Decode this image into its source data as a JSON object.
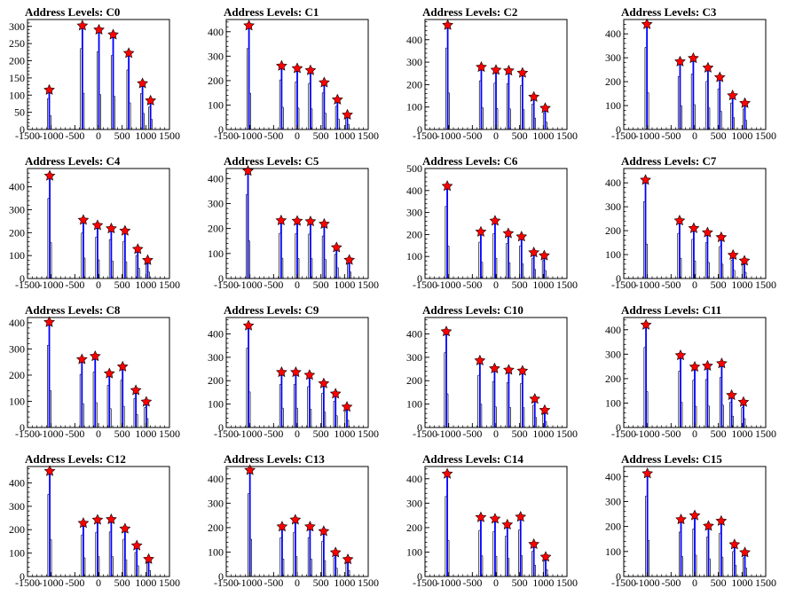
{
  "chart_data": {
    "type": "bar",
    "layout": {
      "rows": 4,
      "cols": 4
    },
    "x_range": [
      -1500,
      1500
    ],
    "x_ticks": [
      -1500,
      -1000,
      -500,
      0,
      500,
      1000,
      1500
    ],
    "colors": {
      "bars": "#0000ff",
      "outline": "#000000",
      "star": "#ff0000",
      "star_edge": "#000000"
    },
    "panels": [
      {
        "title": "Address Levels: C0",
        "ylim": [
          0,
          320
        ],
        "y_ticks": [
          0,
          50,
          100,
          150,
          200,
          250,
          300
        ],
        "peaks": [
          [
            -1040,
            115
          ],
          [
            -340,
            302
          ],
          [
            10,
            290
          ],
          [
            310,
            276
          ],
          [
            640,
            222
          ],
          [
            930,
            134
          ],
          [
            1100,
            84
          ]
        ]
      },
      {
        "title": "Address Levels: C1",
        "ylim": [
          0,
          450
        ],
        "y_ticks": [
          0,
          100,
          200,
          300,
          400
        ],
        "peaks": [
          [
            -1020,
            425
          ],
          [
            -330,
            260
          ],
          [
            0,
            250
          ],
          [
            280,
            242
          ],
          [
            570,
            192
          ],
          [
            850,
            122
          ],
          [
            1060,
            60
          ]
        ]
      },
      {
        "title": "Address Levels: C2",
        "ylim": [
          0,
          490
        ],
        "y_ticks": [
          0,
          100,
          200,
          300,
          400
        ],
        "peaks": [
          [
            -1020,
            465
          ],
          [
            -310,
            278
          ],
          [
            0,
            265
          ],
          [
            270,
            262
          ],
          [
            560,
            252
          ],
          [
            800,
            145
          ],
          [
            1040,
            95
          ]
        ]
      },
      {
        "title": "Address Levels: C3",
        "ylim": [
          0,
          460
        ],
        "y_ticks": [
          0,
          100,
          200,
          300,
          400
        ],
        "peaks": [
          [
            -1010,
            440
          ],
          [
            -310,
            284
          ],
          [
            -30,
            298
          ],
          [
            280,
            258
          ],
          [
            530,
            218
          ],
          [
            800,
            142
          ],
          [
            1060,
            110
          ]
        ]
      },
      {
        "title": "Address Levels: C4",
        "ylim": [
          0,
          480
        ],
        "y_ticks": [
          0,
          100,
          200,
          300,
          400
        ],
        "peaks": [
          [
            -1030,
            448
          ],
          [
            -320,
            255
          ],
          [
            -20,
            232
          ],
          [
            270,
            218
          ],
          [
            560,
            208
          ],
          [
            830,
            128
          ],
          [
            1040,
            80
          ]
        ]
      },
      {
        "title": "Address Levels: C5",
        "ylim": [
          0,
          440
        ],
        "y_ticks": [
          0,
          100,
          200,
          300,
          400
        ],
        "peaks": [
          [
            -1040,
            430
          ],
          [
            -340,
            232
          ],
          [
            0,
            230
          ],
          [
            280,
            228
          ],
          [
            570,
            218
          ],
          [
            830,
            124
          ],
          [
            1100,
            74
          ]
        ]
      },
      {
        "title": "Address Levels: C6",
        "ylim": [
          0,
          500
        ],
        "y_ticks": [
          0,
          100,
          200,
          300,
          400,
          500
        ],
        "peaks": [
          [
            -1030,
            420
          ],
          [
            -320,
            212
          ],
          [
            -20,
            262
          ],
          [
            260,
            205
          ],
          [
            540,
            190
          ],
          [
            800,
            118
          ],
          [
            1020,
            104
          ]
        ]
      },
      {
        "title": "Address Levels: C7",
        "ylim": [
          0,
          460
        ],
        "y_ticks": [
          0,
          100,
          200,
          300,
          400
        ],
        "peaks": [
          [
            -1040,
            412
          ],
          [
            -320,
            242
          ],
          [
            -20,
            210
          ],
          [
            270,
            192
          ],
          [
            560,
            172
          ],
          [
            810,
            98
          ],
          [
            1050,
            74
          ]
        ]
      },
      {
        "title": "Address Levels: C8",
        "ylim": [
          0,
          420
        ],
        "y_ticks": [
          0,
          100,
          200,
          300,
          400
        ],
        "peaks": [
          [
            -1040,
            402
          ],
          [
            -350,
            260
          ],
          [
            -70,
            272
          ],
          [
            230,
            206
          ],
          [
            510,
            232
          ],
          [
            790,
            142
          ],
          [
            1010,
            98
          ]
        ]
      },
      {
        "title": "Address Levels: C9",
        "ylim": [
          0,
          470
        ],
        "y_ticks": [
          0,
          100,
          200,
          300,
          400
        ],
        "peaks": [
          [
            -1030,
            435
          ],
          [
            -330,
            236
          ],
          [
            -30,
            236
          ],
          [
            260,
            224
          ],
          [
            560,
            188
          ],
          [
            810,
            144
          ],
          [
            1050,
            88
          ]
        ]
      },
      {
        "title": "Address Levels: C10",
        "ylim": [
          0,
          470
        ],
        "y_ticks": [
          0,
          100,
          200,
          300,
          400
        ],
        "peaks": [
          [
            -1050,
            410
          ],
          [
            -340,
            286
          ],
          [
            -30,
            252
          ],
          [
            270,
            246
          ],
          [
            560,
            242
          ],
          [
            820,
            122
          ],
          [
            1030,
            74
          ]
        ]
      },
      {
        "title": "Address Levels: C11",
        "ylim": [
          0,
          450
        ],
        "y_ticks": [
          0,
          100,
          200,
          300,
          400
        ],
        "peaks": [
          [
            -1030,
            420
          ],
          [
            -300,
            295
          ],
          [
            0,
            248
          ],
          [
            270,
            252
          ],
          [
            570,
            262
          ],
          [
            780,
            132
          ],
          [
            1030,
            104
          ]
        ]
      },
      {
        "title": "Address Levels: C12",
        "ylim": [
          0,
          470
        ],
        "y_ticks": [
          0,
          100,
          200,
          300,
          400
        ],
        "peaks": [
          [
            -1030,
            450
          ],
          [
            -320,
            228
          ],
          [
            -20,
            242
          ],
          [
            270,
            244
          ],
          [
            560,
            204
          ],
          [
            810,
            132
          ],
          [
            1060,
            74
          ]
        ]
      },
      {
        "title": "Address Levels: C13",
        "ylim": [
          0,
          450
        ],
        "y_ticks": [
          0,
          100,
          200,
          300,
          400
        ],
        "peaks": [
          [
            -1000,
            435
          ],
          [
            -320,
            204
          ],
          [
            -40,
            232
          ],
          [
            270,
            204
          ],
          [
            560,
            185
          ],
          [
            810,
            98
          ],
          [
            1070,
            70
          ]
        ]
      },
      {
        "title": "Address Levels: C14",
        "ylim": [
          0,
          450
        ],
        "y_ticks": [
          0,
          100,
          200,
          300,
          400
        ],
        "peaks": [
          [
            -1030,
            420
          ],
          [
            -320,
            242
          ],
          [
            -20,
            236
          ],
          [
            240,
            212
          ],
          [
            520,
            244
          ],
          [
            800,
            132
          ],
          [
            1050,
            80
          ]
        ]
      },
      {
        "title": "Address Levels: C15",
        "ylim": [
          0,
          440
        ],
        "y_ticks": [
          0,
          100,
          200,
          300,
          400
        ],
        "peaks": [
          [
            -1000,
            412
          ],
          [
            -290,
            228
          ],
          [
            0,
            244
          ],
          [
            290,
            202
          ],
          [
            560,
            222
          ],
          [
            840,
            128
          ],
          [
            1060,
            96
          ]
        ]
      }
    ]
  }
}
